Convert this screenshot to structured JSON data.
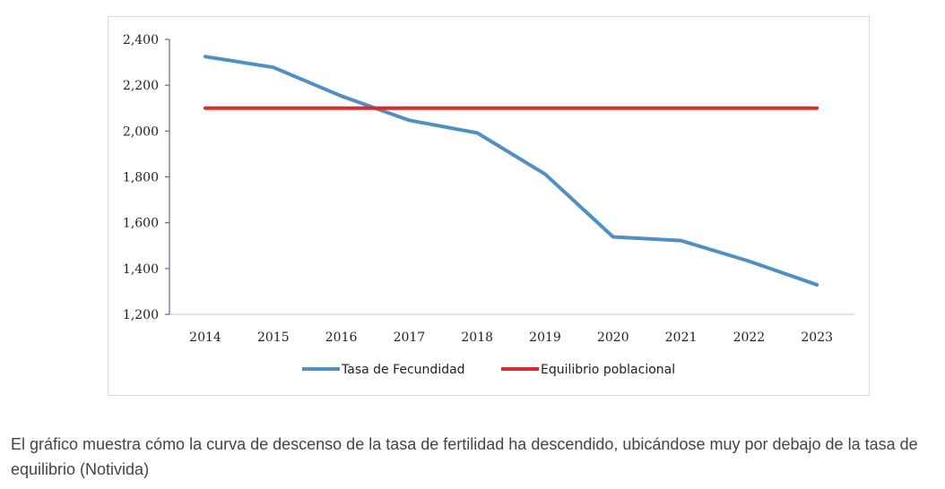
{
  "chart_data": {
    "type": "line",
    "title": "",
    "xlabel": "",
    "ylabel": "",
    "categories": [
      "2014",
      "2015",
      "2016",
      "2017",
      "2018",
      "2019",
      "2020",
      "2021",
      "2022",
      "2023"
    ],
    "series": [
      {
        "name": "Tasa de Fecundidad",
        "color": "#4f8fc4",
        "values": [
          2325,
          2278,
          2153,
          2047,
          1992,
          1812,
          1538,
          1522,
          1432,
          1329
        ]
      },
      {
        "name": "Equilibrio poblacional",
        "color": "#dd2a2a",
        "values": [
          2100,
          2100,
          2100,
          2100,
          2100,
          2100,
          2100,
          2100,
          2100,
          2100
        ]
      }
    ],
    "ylim": [
      1200,
      2400
    ],
    "yticks": [
      1200,
      1400,
      1600,
      1800,
      2000,
      2200,
      2400
    ],
    "ytick_labels": [
      "1,200",
      "1,400",
      "1,600",
      "1,800",
      "2,000",
      "2,200",
      "2,400"
    ],
    "grid": false,
    "legend_position": "bottom"
  },
  "caption": {
    "text": "El gráfico muestra cómo la curva de descenso de la tasa de fertilidad ha descendido, ubicándose muy por debajo de la tasa de equilibrio (Notivida)"
  }
}
